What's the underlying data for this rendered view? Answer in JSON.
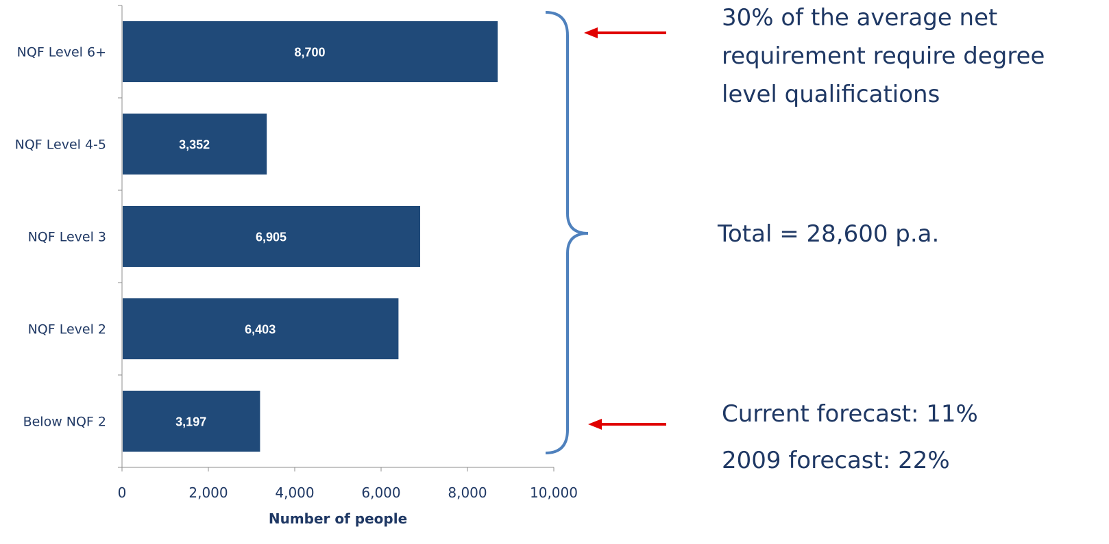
{
  "chart_data": {
    "type": "bar",
    "orientation": "horizontal",
    "categories": [
      "NQF Level 6+",
      "NQF Level 4-5",
      "NQF Level 3",
      "NQF Level 2",
      "Below NQF 2"
    ],
    "values": [
      8700,
      3352,
      6905,
      6403,
      3197
    ],
    "value_labels": [
      "8,700",
      "3,352",
      "6,905",
      "6,403",
      "3,197"
    ],
    "xlabel": "Number of people",
    "ylabel": "",
    "xlim": [
      0,
      10000
    ],
    "xticks": [
      0,
      2000,
      4000,
      6000,
      8000,
      10000
    ],
    "xtick_labels": [
      "0",
      "2,000",
      "4,000",
      "6,000",
      "8,000",
      "10,000"
    ],
    "grid": false,
    "colors": {
      "bar": "#204a79",
      "brace": "#4f81bd",
      "arrow": "#e00000",
      "text": "#1f3864"
    }
  },
  "annotations": {
    "top": [
      "30% of the average net",
      "requirement require degree",
      "level qualifications"
    ],
    "middle": "Total = 28,600 p.a.",
    "bottom": [
      "Current forecast: 11%",
      "2009 forecast: 22%"
    ]
  }
}
